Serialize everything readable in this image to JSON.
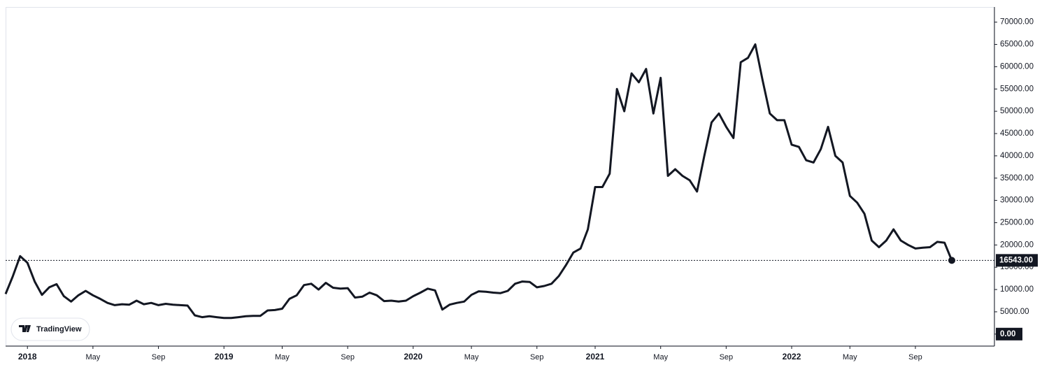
{
  "chart_data": {
    "type": "line",
    "categories": [
      null,
      null,
      null,
      "2018",
      null,
      null,
      null,
      null,
      null,
      null,
      null,
      null,
      "May",
      null,
      null,
      null,
      null,
      null,
      null,
      null,
      null,
      "Sep",
      null,
      null,
      null,
      null,
      null,
      null,
      null,
      null,
      "2019",
      null,
      null,
      null,
      null,
      null,
      null,
      null,
      "May",
      null,
      null,
      null,
      null,
      null,
      null,
      null,
      null,
      "Sep",
      null,
      null,
      null,
      null,
      null,
      null,
      null,
      null,
      "2020",
      null,
      null,
      null,
      null,
      null,
      null,
      null,
      "May",
      null,
      null,
      null,
      null,
      null,
      null,
      null,
      null,
      "Sep",
      null,
      null,
      null,
      null,
      null,
      null,
      null,
      "2021",
      null,
      null,
      null,
      null,
      null,
      null,
      null,
      null,
      "May",
      null,
      null,
      null,
      null,
      null,
      null,
      null,
      null,
      "Sep",
      null,
      null,
      null,
      null,
      null,
      null,
      null,
      null,
      "2022",
      null,
      null,
      null,
      null,
      null,
      null,
      null,
      "May",
      null,
      null,
      null,
      null,
      null,
      null,
      null,
      null,
      "Sep",
      null,
      null,
      null,
      null,
      null
    ],
    "series": [
      {
        "color": "#131722",
        "values": [
          9000,
          13000,
          17500,
          16000,
          11800,
          8800,
          10500,
          11200,
          8500,
          7300,
          8700,
          9700,
          8700,
          7900,
          7000,
          6500,
          6700,
          6600,
          7500,
          6700,
          7000,
          6500,
          6800,
          6600,
          6500,
          6400,
          4200,
          3800,
          4000,
          3800,
          3600,
          3600,
          3800,
          4000,
          4100,
          4100,
          5300,
          5400,
          5700,
          7900,
          8700,
          11000,
          11300,
          10000,
          11500,
          10400,
          10200,
          10300,
          8200,
          8400,
          9300,
          8700,
          7400,
          7500,
          7300,
          7500,
          8500,
          9300,
          10200,
          9800,
          5500,
          6600,
          7000,
          7300,
          8800,
          9600,
          9500,
          9300,
          9200,
          9700,
          11300,
          11800,
          11700,
          10500,
          10800,
          11300,
          13000,
          15500,
          18300,
          19200,
          23500,
          33000,
          33000,
          36000,
          55000,
          50000,
          58500,
          56500,
          59500,
          49500,
          57500,
          35500,
          37000,
          35500,
          34500,
          32000,
          40000,
          47500,
          49500,
          46500,
          44000,
          61000,
          62000,
          65000,
          57000,
          49500,
          48000,
          48000,
          42500,
          42000,
          39000,
          38500,
          41500,
          46500,
          40000,
          38500,
          31000,
          29500,
          27000,
          21000,
          19500,
          21000,
          23500,
          21000,
          20000,
          19200,
          19400,
          19500,
          20700,
          20500,
          16543
        ]
      }
    ],
    "current_price": {
      "value": 16543,
      "label": "16543.00"
    },
    "ylim": [
      -2700,
      73400
    ],
    "yticks": [
      {
        "value": 0,
        "label": "0.00"
      },
      {
        "value": 5000,
        "label": "5000.00"
      },
      {
        "value": 10000,
        "label": "10000.00"
      },
      {
        "value": 15000,
        "label": "15000.00"
      },
      {
        "value": 20000,
        "label": "20000.00"
      },
      {
        "value": 25000,
        "label": "25000.00"
      },
      {
        "value": 30000,
        "label": "30000.00"
      },
      {
        "value": 35000,
        "label": "35000.00"
      },
      {
        "value": 40000,
        "label": "40000.00"
      },
      {
        "value": 45000,
        "label": "45000.00"
      },
      {
        "value": 50000,
        "label": "50000.00"
      },
      {
        "value": 55000,
        "label": "55000.00"
      },
      {
        "value": 60000,
        "label": "60000.00"
      },
      {
        "value": 65000,
        "label": "65000.00"
      },
      {
        "value": 70000,
        "label": "70000.00"
      }
    ],
    "watermark": "TradingView"
  }
}
